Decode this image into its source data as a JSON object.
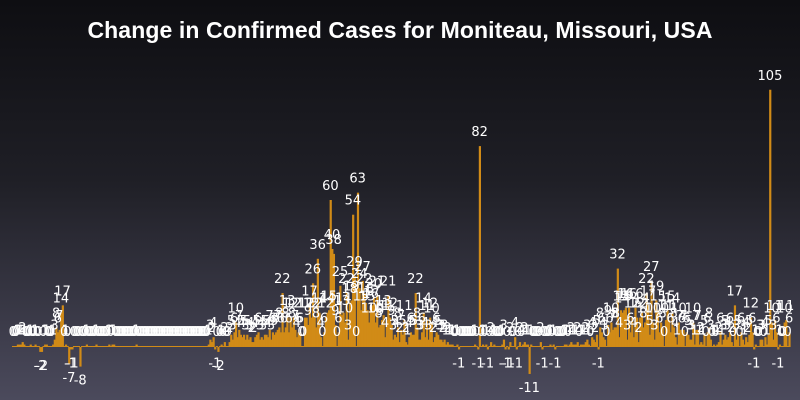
{
  "chart_data": {
    "type": "bar",
    "title": "Change in Confirmed Cases for Moniteau, Missouri, USA",
    "xlabel": "",
    "ylabel": "",
    "ylim": [
      -12,
      108
    ],
    "bar_color": "#d18b17",
    "label_color": "#ffffff",
    "legend": "none",
    "grid": false,
    "values": [
      0,
      0,
      0,
      1,
      1,
      1,
      2,
      1,
      0,
      0,
      0,
      1,
      0,
      0,
      1,
      0,
      0,
      -2,
      -2,
      0,
      1,
      1,
      0,
      0,
      0,
      1,
      3,
      8,
      6,
      7,
      14,
      17,
      0,
      1,
      0,
      -7,
      -1,
      -1,
      0,
      0,
      0,
      0,
      -8,
      0,
      0,
      0,
      1,
      0,
      0,
      0,
      0,
      0,
      1,
      0,
      0,
      0,
      0,
      0,
      0,
      0,
      1,
      0,
      1,
      1,
      0,
      0,
      0,
      0,
      0,
      0,
      0,
      0,
      0,
      0,
      0,
      0,
      0,
      1,
      0,
      0,
      0,
      0,
      0,
      0,
      0,
      0,
      0,
      0,
      0,
      0,
      0,
      0,
      0,
      0,
      0,
      0,
      0,
      0,
      0,
      0,
      0,
      0,
      0,
      0,
      0,
      0,
      0,
      0,
      0,
      0,
      0,
      0,
      0,
      0,
      0,
      0,
      0,
      0,
      0,
      0,
      0,
      0,
      1,
      3,
      2,
      4,
      -1,
      0,
      -2,
      0,
      1,
      0,
      2,
      0,
      0,
      2,
      5,
      3,
      6,
      10,
      4,
      7,
      5,
      4,
      5,
      3,
      5,
      3,
      4,
      2,
      2,
      4,
      5,
      6,
      3,
      4,
      3,
      5,
      5,
      4,
      7,
      3,
      6,
      5,
      6,
      7,
      8,
      6,
      22,
      6,
      8,
      13,
      6,
      12,
      8,
      12,
      7,
      4,
      6,
      6,
      0,
      0,
      12,
      12,
      9,
      17,
      12,
      26,
      12,
      8,
      36,
      14,
      4,
      0,
      6,
      12,
      14,
      15,
      60,
      40,
      38,
      9,
      0,
      6,
      25,
      13,
      14,
      10,
      22,
      3,
      18,
      19,
      54,
      29,
      0,
      63,
      24,
      15,
      27,
      22,
      18,
      15,
      10,
      16,
      17,
      20,
      10,
      21,
      8,
      9,
      11,
      13,
      4,
      11,
      21,
      12,
      9,
      3,
      5,
      4,
      8,
      2,
      7,
      5,
      11,
      2,
      1,
      4,
      6,
      5,
      5,
      22,
      8,
      3,
      3,
      6,
      14,
      4,
      11,
      3,
      12,
      10,
      2,
      4,
      6,
      5,
      3,
      3,
      2,
      3,
      1,
      2,
      1,
      1,
      1,
      0,
      0,
      1,
      -1,
      0,
      0,
      0,
      0,
      0,
      0,
      0,
      0,
      0,
      1,
      0,
      -1,
      82,
      0,
      1,
      0,
      1,
      -1,
      0,
      2,
      0,
      1,
      0,
      0,
      0,
      0,
      1,
      3,
      -1,
      0,
      -1,
      2,
      0,
      0,
      4,
      -1,
      0,
      2,
      0,
      1,
      2,
      1,
      1,
      -11,
      1,
      0,
      0,
      0,
      0,
      0,
      2,
      -1,
      0,
      0,
      0,
      0,
      1,
      0,
      1,
      -1,
      0,
      0,
      0,
      0,
      0,
      1,
      1,
      0,
      1,
      2,
      1,
      1,
      1,
      2,
      0,
      1,
      1,
      1,
      2,
      3,
      1,
      0,
      4,
      3,
      2,
      5,
      -1,
      8,
      6,
      4,
      3,
      0,
      9,
      6,
      10,
      7,
      8,
      8,
      32,
      4,
      15,
      14,
      15,
      16,
      3,
      16,
      6,
      12,
      4,
      16,
      12,
      2,
      12,
      14,
      8,
      10,
      22,
      17,
      5,
      27,
      10,
      3,
      19,
      15,
      6,
      10,
      8,
      0,
      11,
      15,
      11,
      6,
      14,
      8,
      4,
      1,
      10,
      7,
      6,
      7,
      0,
      6,
      5,
      3,
      3,
      10,
      1,
      7,
      7,
      1,
      2,
      1,
      5,
      0,
      6,
      8,
      3,
      0,
      1,
      0,
      1,
      2,
      6,
      1,
      3,
      5,
      3,
      4,
      6,
      2,
      0,
      17,
      3,
      5,
      0,
      6,
      3,
      1,
      4,
      2,
      5,
      12,
      6,
      -1,
      1,
      0,
      0,
      3,
      3,
      0,
      4,
      1,
      5,
      105,
      10,
      3,
      11,
      6,
      -1,
      1,
      0,
      0,
      10,
      11,
      0,
      6
    ]
  }
}
